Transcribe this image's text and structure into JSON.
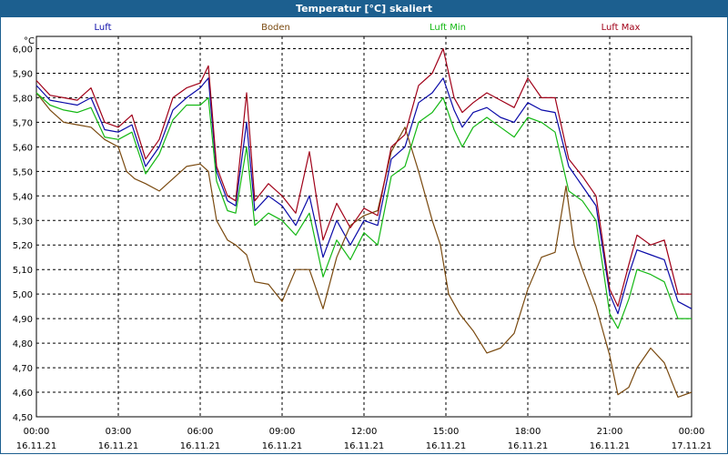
{
  "window": {
    "title": "Temperatur [°C] skaliert"
  },
  "colors": {
    "titlebar": "#1c5f8f",
    "luft": "#0a0aa8",
    "boden": "#7a4a10",
    "luft_min": "#14b814",
    "luft_max": "#a00018",
    "grid": "#000000"
  },
  "chart_data": {
    "type": "line",
    "title": "Temperatur [°C] skaliert",
    "ylabel": "°C",
    "ylim": [
      4.5,
      6.05
    ],
    "xlim": [
      0,
      24
    ],
    "grid": true,
    "legend_position": "top",
    "y_ticks": [
      "6,00",
      "5,90",
      "5,80",
      "5,70",
      "5,60",
      "5,50",
      "5,40",
      "5,30",
      "5,20",
      "5,10",
      "5,00",
      "4,90",
      "4,80",
      "4,70",
      "4,60",
      "4,50"
    ],
    "x_ticks": [
      {
        "time": "00:00",
        "date": "16.11.21"
      },
      {
        "time": "03:00",
        "date": "16.11.21"
      },
      {
        "time": "06:00",
        "date": "16.11.21"
      },
      {
        "time": "09:00",
        "date": "16.11.21"
      },
      {
        "time": "12:00",
        "date": "16.11.21"
      },
      {
        "time": "15:00",
        "date": "16.11.21"
      },
      {
        "time": "18:00",
        "date": "16.11.21"
      },
      {
        "time": "21:00",
        "date": "16.11.21"
      },
      {
        "time": "00:00",
        "date": "17.11.21"
      }
    ],
    "series": [
      {
        "name": "Luft",
        "color": "#0a0aa8",
        "points": [
          [
            0,
            5.85
          ],
          [
            0.5,
            5.79
          ],
          [
            1,
            5.78
          ],
          [
            1.5,
            5.77
          ],
          [
            2,
            5.8
          ],
          [
            2.5,
            5.67
          ],
          [
            3,
            5.66
          ],
          [
            3.5,
            5.69
          ],
          [
            4,
            5.52
          ],
          [
            4.5,
            5.6
          ],
          [
            5,
            5.75
          ],
          [
            5.5,
            5.8
          ],
          [
            6,
            5.84
          ],
          [
            6.3,
            5.88
          ],
          [
            6.6,
            5.5
          ],
          [
            7,
            5.38
          ],
          [
            7.3,
            5.36
          ],
          [
            7.7,
            5.7
          ],
          [
            8,
            5.34
          ],
          [
            8.5,
            5.4
          ],
          [
            9,
            5.36
          ],
          [
            9.5,
            5.28
          ],
          [
            10,
            5.4
          ],
          [
            10.5,
            5.15
          ],
          [
            11,
            5.3
          ],
          [
            11.5,
            5.2
          ],
          [
            12,
            5.3
          ],
          [
            12.5,
            5.28
          ],
          [
            13,
            5.55
          ],
          [
            13.5,
            5.6
          ],
          [
            14,
            5.78
          ],
          [
            14.5,
            5.82
          ],
          [
            14.9,
            5.88
          ],
          [
            15.3,
            5.75
          ],
          [
            15.6,
            5.68
          ],
          [
            16,
            5.74
          ],
          [
            16.5,
            5.76
          ],
          [
            17,
            5.72
          ],
          [
            17.5,
            5.7
          ],
          [
            18,
            5.78
          ],
          [
            18.5,
            5.75
          ],
          [
            19,
            5.74
          ],
          [
            19.5,
            5.52
          ],
          [
            20,
            5.44
          ],
          [
            20.5,
            5.36
          ],
          [
            21,
            5.0
          ],
          [
            21.3,
            4.92
          ],
          [
            21.7,
            5.08
          ],
          [
            22,
            5.18
          ],
          [
            22.5,
            5.16
          ],
          [
            23,
            5.14
          ],
          [
            23.5,
            4.97
          ],
          [
            24,
            4.94
          ]
        ]
      },
      {
        "name": "Boden",
        "color": "#7a4a10",
        "points": [
          [
            0,
            5.82
          ],
          [
            0.5,
            5.75
          ],
          [
            1,
            5.7
          ],
          [
            1.5,
            5.69
          ],
          [
            2,
            5.68
          ],
          [
            2.5,
            5.63
          ],
          [
            3,
            5.6
          ],
          [
            3.3,
            5.5
          ],
          [
            3.6,
            5.47
          ],
          [
            4,
            5.45
          ],
          [
            4.5,
            5.42
          ],
          [
            5,
            5.47
          ],
          [
            5.5,
            5.52
          ],
          [
            6,
            5.53
          ],
          [
            6.3,
            5.5
          ],
          [
            6.6,
            5.3
          ],
          [
            7,
            5.22
          ],
          [
            7.3,
            5.2
          ],
          [
            7.7,
            5.16
          ],
          [
            8,
            5.05
          ],
          [
            8.5,
            5.04
          ],
          [
            9,
            4.97
          ],
          [
            9.5,
            5.1
          ],
          [
            10,
            5.1
          ],
          [
            10.5,
            4.94
          ],
          [
            11,
            5.15
          ],
          [
            11.5,
            5.28
          ],
          [
            12,
            5.32
          ],
          [
            12.5,
            5.34
          ],
          [
            13,
            5.58
          ],
          [
            13.5,
            5.68
          ],
          [
            14,
            5.5
          ],
          [
            14.5,
            5.3
          ],
          [
            14.8,
            5.2
          ],
          [
            15.1,
            5.0
          ],
          [
            15.5,
            4.92
          ],
          [
            16,
            4.85
          ],
          [
            16.5,
            4.76
          ],
          [
            17,
            4.78
          ],
          [
            17.5,
            4.84
          ],
          [
            18,
            5.02
          ],
          [
            18.5,
            5.15
          ],
          [
            19,
            5.17
          ],
          [
            19.4,
            5.44
          ],
          [
            19.7,
            5.2
          ],
          [
            20,
            5.1
          ],
          [
            20.5,
            4.95
          ],
          [
            21,
            4.75
          ],
          [
            21.3,
            4.59
          ],
          [
            21.7,
            4.62
          ],
          [
            22,
            4.7
          ],
          [
            22.5,
            4.78
          ],
          [
            23,
            4.72
          ],
          [
            23.5,
            4.58
          ],
          [
            24,
            4.6
          ]
        ]
      },
      {
        "name": "Luft Min",
        "color": "#14b814",
        "points": [
          [
            0,
            5.82
          ],
          [
            0.5,
            5.77
          ],
          [
            1,
            5.75
          ],
          [
            1.5,
            5.74
          ],
          [
            2,
            5.76
          ],
          [
            2.5,
            5.64
          ],
          [
            3,
            5.63
          ],
          [
            3.5,
            5.66
          ],
          [
            4,
            5.49
          ],
          [
            4.5,
            5.57
          ],
          [
            5,
            5.71
          ],
          [
            5.5,
            5.77
          ],
          [
            6,
            5.77
          ],
          [
            6.3,
            5.8
          ],
          [
            6.6,
            5.46
          ],
          [
            7,
            5.34
          ],
          [
            7.3,
            5.33
          ],
          [
            7.7,
            5.6
          ],
          [
            8,
            5.28
          ],
          [
            8.5,
            5.33
          ],
          [
            9,
            5.3
          ],
          [
            9.5,
            5.24
          ],
          [
            10,
            5.33
          ],
          [
            10.5,
            5.07
          ],
          [
            11,
            5.22
          ],
          [
            11.5,
            5.14
          ],
          [
            12,
            5.25
          ],
          [
            12.5,
            5.2
          ],
          [
            13,
            5.48
          ],
          [
            13.5,
            5.52
          ],
          [
            14,
            5.7
          ],
          [
            14.5,
            5.74
          ],
          [
            14.9,
            5.8
          ],
          [
            15.3,
            5.67
          ],
          [
            15.6,
            5.6
          ],
          [
            16,
            5.68
          ],
          [
            16.5,
            5.72
          ],
          [
            17,
            5.68
          ],
          [
            17.5,
            5.64
          ],
          [
            18,
            5.72
          ],
          [
            18.5,
            5.7
          ],
          [
            19,
            5.66
          ],
          [
            19.5,
            5.42
          ],
          [
            20,
            5.38
          ],
          [
            20.5,
            5.3
          ],
          [
            21,
            4.92
          ],
          [
            21.3,
            4.86
          ],
          [
            21.7,
            4.98
          ],
          [
            22,
            5.1
          ],
          [
            22.5,
            5.08
          ],
          [
            23,
            5.05
          ],
          [
            23.5,
            4.9
          ],
          [
            24,
            4.9
          ]
        ]
      },
      {
        "name": "Luft Max",
        "color": "#a00018",
        "points": [
          [
            0,
            5.87
          ],
          [
            0.5,
            5.81
          ],
          [
            1,
            5.8
          ],
          [
            1.5,
            5.79
          ],
          [
            2,
            5.84
          ],
          [
            2.5,
            5.7
          ],
          [
            3,
            5.68
          ],
          [
            3.5,
            5.73
          ],
          [
            4,
            5.55
          ],
          [
            4.5,
            5.63
          ],
          [
            5,
            5.8
          ],
          [
            5.5,
            5.84
          ],
          [
            6,
            5.86
          ],
          [
            6.3,
            5.93
          ],
          [
            6.6,
            5.52
          ],
          [
            7,
            5.4
          ],
          [
            7.3,
            5.38
          ],
          [
            7.7,
            5.82
          ],
          [
            8,
            5.38
          ],
          [
            8.5,
            5.45
          ],
          [
            9,
            5.4
          ],
          [
            9.5,
            5.33
          ],
          [
            10,
            5.58
          ],
          [
            10.5,
            5.22
          ],
          [
            11,
            5.37
          ],
          [
            11.5,
            5.27
          ],
          [
            12,
            5.35
          ],
          [
            12.5,
            5.32
          ],
          [
            13,
            5.6
          ],
          [
            13.5,
            5.65
          ],
          [
            14,
            5.85
          ],
          [
            14.5,
            5.9
          ],
          [
            14.9,
            6.0
          ],
          [
            15.3,
            5.8
          ],
          [
            15.6,
            5.74
          ],
          [
            16,
            5.78
          ],
          [
            16.5,
            5.82
          ],
          [
            17,
            5.79
          ],
          [
            17.5,
            5.76
          ],
          [
            18,
            5.88
          ],
          [
            18.5,
            5.8
          ],
          [
            19,
            5.8
          ],
          [
            19.5,
            5.55
          ],
          [
            20,
            5.48
          ],
          [
            20.5,
            5.4
          ],
          [
            21,
            5.02
          ],
          [
            21.3,
            4.95
          ],
          [
            21.7,
            5.12
          ],
          [
            22,
            5.24
          ],
          [
            22.5,
            5.2
          ],
          [
            23,
            5.22
          ],
          [
            23.5,
            5.0
          ],
          [
            24,
            5.0
          ]
        ]
      }
    ]
  }
}
